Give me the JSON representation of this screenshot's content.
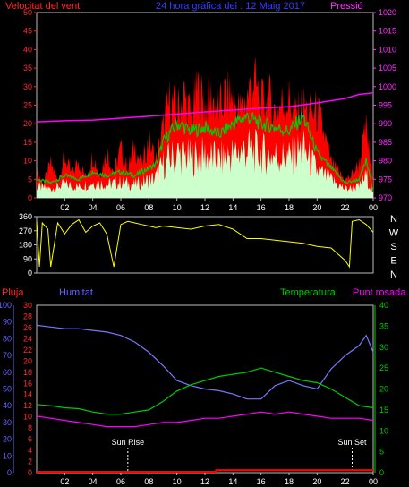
{
  "chart_data": [
    {
      "type": "line",
      "title": "24 hora gràfica del : 12 Maig 2017",
      "left_axis_label": "Velocitat del vent",
      "right_axis_label": "Pressió",
      "left_ticks": [
        "0",
        "5",
        "10",
        "15",
        "20",
        "25",
        "30",
        "35",
        "40",
        "45",
        "50"
      ],
      "right_ticks": [
        "970",
        "975",
        "980",
        "985",
        "990",
        "995",
        "1000",
        "1005",
        "1010",
        "1015",
        "1020"
      ],
      "x_ticks": [
        "02",
        "04",
        "06",
        "08",
        "10",
        "12",
        "14",
        "16",
        "18",
        "20",
        "22",
        "00"
      ],
      "ylim": [
        0,
        50
      ],
      "ylim_right": [
        970,
        1020
      ],
      "series_colors": [
        "#ff0000",
        "#00cc00",
        "#ccffcc",
        "#ff00ff"
      ],
      "gust": {
        "x": [
          0,
          0.5,
          1,
          1.5,
          2,
          2.5,
          3,
          3.5,
          4,
          4.5,
          5,
          5.5,
          6,
          6.5,
          7,
          7.5,
          8,
          8.5,
          9,
          9.5,
          10,
          10.5,
          11,
          11.5,
          12,
          12.5,
          13,
          13.5,
          14,
          14.5,
          15,
          15.5,
          16,
          16.5,
          17,
          17.5,
          18,
          18.5,
          19,
          19.5,
          20,
          20.5,
          21,
          21.5,
          22,
          22.5,
          23,
          23.5,
          24
        ],
        "values": [
          9,
          5,
          12,
          6,
          14,
          8,
          13,
          7,
          15,
          8,
          16,
          9,
          17,
          10,
          18,
          11,
          20,
          13,
          24,
          34,
          30,
          36,
          28,
          38,
          32,
          35,
          30,
          36,
          34,
          30,
          35,
          41,
          32,
          35,
          30,
          33,
          34,
          28,
          32,
          29,
          30,
          22,
          12,
          9,
          6,
          8,
          12,
          24,
          5
        ]
      },
      "speed": {
        "x": [
          0,
          1,
          2,
          3,
          4,
          5,
          6,
          7,
          8,
          8.5,
          9,
          10,
          11,
          12,
          13,
          14,
          15,
          16,
          17,
          18,
          19,
          20,
          21,
          22,
          23,
          23.5,
          24
        ],
        "values": [
          5,
          4,
          6,
          5,
          7,
          6,
          7,
          6,
          8,
          9,
          15,
          20,
          18,
          19,
          17,
          20,
          22,
          20,
          19,
          18,
          22,
          12,
          8,
          4,
          5,
          10,
          2
        ]
      },
      "pressure": {
        "x": [
          0,
          2,
          4,
          6,
          8,
          10,
          12,
          14,
          16,
          18,
          20,
          22,
          23,
          24
        ],
        "values": [
          990.5,
          990.8,
          991,
          991.5,
          992,
          992.6,
          993.2,
          993.7,
          994.2,
          994.6,
          995.6,
          996.8,
          997.9,
          998.3
        ]
      }
    },
    {
      "type": "line",
      "left_ticks": [
        "0",
        "2",
        "4",
        "6",
        "8",
        "10",
        "12",
        "14",
        "16",
        "18",
        "20",
        "22",
        "24",
        "26",
        "28",
        "30"
      ],
      "right_ticks": [
        "0",
        "5",
        "10",
        "15",
        "20",
        "25",
        "30",
        "35",
        "40"
      ],
      "x_ticks": [
        "02",
        "04",
        "06",
        "08",
        "10",
        "12",
        "14",
        "16",
        "18",
        "20",
        "22",
        "00"
      ],
      "ylim": [
        0,
        360
      ],
      "compass_labels": [
        "N",
        "W",
        "S",
        "E",
        "N"
      ],
      "direction": {
        "x": [
          0,
          0.2,
          0.4,
          0.6,
          0.8,
          1,
          1.5,
          2,
          2.5,
          3,
          3.5,
          4,
          4.5,
          5,
          5.5,
          6,
          6.5,
          7,
          7.5,
          8,
          8.5,
          9,
          10,
          11,
          12,
          13,
          14,
          15,
          16,
          17,
          18,
          19,
          20,
          21,
          22,
          22.3,
          22.5,
          23,
          23.5,
          24
        ],
        "values": [
          330,
          40,
          320,
          300,
          280,
          40,
          320,
          250,
          310,
          340,
          260,
          300,
          320,
          250,
          40,
          310,
          330,
          320,
          310,
          300,
          290,
          300,
          290,
          280,
          300,
          310,
          280,
          220,
          220,
          210,
          200,
          190,
          170,
          160,
          80,
          40,
          330,
          340,
          310,
          260
        ]
      }
    },
    {
      "type": "line",
      "left_axis_label": "Pluja",
      "humidity_label": "Humitat",
      "temperature_label": "Temperatura",
      "dewpoint_label": "Punt rosada",
      "rain_ticks": [
        "0",
        "2",
        "4",
        "6",
        "8",
        "10",
        "12",
        "14",
        "16",
        "18",
        "20",
        "22",
        "24",
        "26",
        "28",
        "30"
      ],
      "humidity_ticks": [
        "0",
        "10",
        "20",
        "30",
        "40",
        "50",
        "60",
        "70",
        "80",
        "90",
        "100"
      ],
      "temp_ticks": [
        "0",
        "5",
        "10",
        "15",
        "20",
        "25",
        "30",
        "35",
        "40"
      ],
      "x_ticks": [
        "02",
        "04",
        "06",
        "08",
        "10",
        "12",
        "14",
        "16",
        "18",
        "20",
        "22",
        "00"
      ],
      "sun_rise_label": "Sun Rise",
      "sun_set_label": "Sun Set",
      "sun_rise_hour": 6.5,
      "sun_set_hour": 22.5,
      "ylim_temperature": [
        0,
        40
      ],
      "ylim_humidity": [
        0,
        100
      ],
      "humidity": {
        "x": [
          0,
          1,
          2,
          3,
          4,
          5,
          6,
          7,
          8,
          9,
          10,
          11,
          12,
          13,
          14,
          15,
          16,
          17,
          18,
          19,
          20,
          21,
          22,
          23,
          23.5,
          24
        ],
        "values": [
          88,
          87,
          86,
          86,
          85,
          84,
          82,
          78,
          72,
          64,
          55,
          52,
          50,
          49,
          47,
          44,
          44,
          52,
          55,
          52,
          50,
          62,
          70,
          76,
          82,
          72
        ]
      },
      "temperature": {
        "x": [
          0,
          1,
          2,
          3,
          4,
          5,
          6,
          7,
          8,
          9,
          10,
          11,
          12,
          13,
          14,
          15,
          16,
          17,
          18,
          19,
          20,
          21,
          22,
          23,
          24
        ],
        "values": [
          16.3,
          16,
          15.5,
          15.3,
          14.5,
          14,
          14,
          14.5,
          15,
          17,
          19.5,
          21,
          22,
          23,
          23.5,
          24,
          25,
          24,
          23,
          22,
          21.5,
          20,
          18,
          16,
          15.5
        ]
      },
      "dewpoint": {
        "x": [
          0,
          1,
          2,
          3,
          4,
          5,
          6,
          7,
          8,
          9,
          10,
          11,
          12,
          13,
          14,
          15,
          16,
          17,
          18,
          19,
          20,
          21,
          22,
          23,
          24
        ],
        "values": [
          13.5,
          13,
          12.5,
          12,
          11.5,
          11,
          11,
          11,
          11.5,
          12,
          12,
          12.5,
          13,
          13,
          13.5,
          14,
          14.5,
          14,
          14.5,
          14,
          13.5,
          13,
          13,
          13,
          12.5
        ]
      },
      "rain": {
        "x": [
          0,
          12.8,
          12.8,
          24
        ],
        "values": [
          0,
          0,
          0.3,
          0.3
        ]
      }
    }
  ]
}
